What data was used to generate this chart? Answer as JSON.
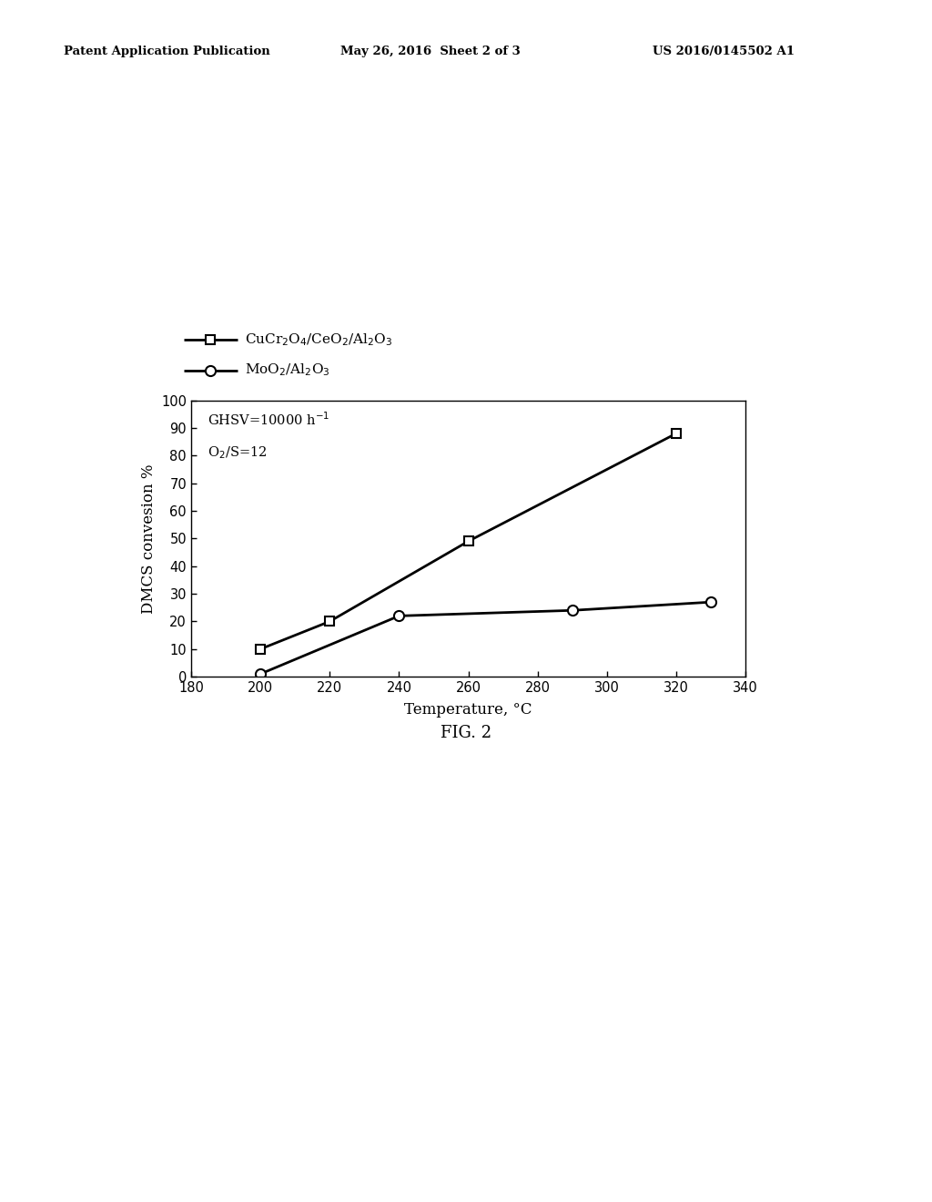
{
  "series1": {
    "x": [
      200,
      220,
      260,
      320
    ],
    "y": [
      10,
      20,
      49,
      88
    ],
    "marker": "s",
    "color": "black",
    "linewidth": 2.0,
    "markersize": 7
  },
  "series2": {
    "x": [
      200,
      240,
      290,
      330
    ],
    "y": [
      1,
      22,
      24,
      27
    ],
    "marker": "o",
    "color": "black",
    "linewidth": 2.0,
    "markersize": 8
  },
  "xlabel": "Temperature, °C",
  "ylabel": "DMCS convesion %",
  "xlim": [
    180,
    340
  ],
  "ylim": [
    0,
    100
  ],
  "xticks": [
    180,
    200,
    220,
    240,
    260,
    280,
    300,
    320,
    340
  ],
  "yticks": [
    0,
    10,
    20,
    30,
    40,
    50,
    60,
    70,
    80,
    90,
    100
  ],
  "fig_caption": "FIG. 2",
  "header_left": "Patent Application Publication",
  "header_mid": "May 26, 2016  Sheet 2 of 3",
  "header_right": "US 2016/0145502 A1",
  "background_color": "#ffffff",
  "plot_bg_color": "#ffffff",
  "legend1_label": "CuCr$_2$O$_4$/CeO$_2$/Al$_2$O$_3$",
  "legend2_label": "MoO$_2$/Al$_2$O$_3$",
  "annot1": "GHSV=10000 h$^{-1}$",
  "annot2": "O$_2$/S=12"
}
